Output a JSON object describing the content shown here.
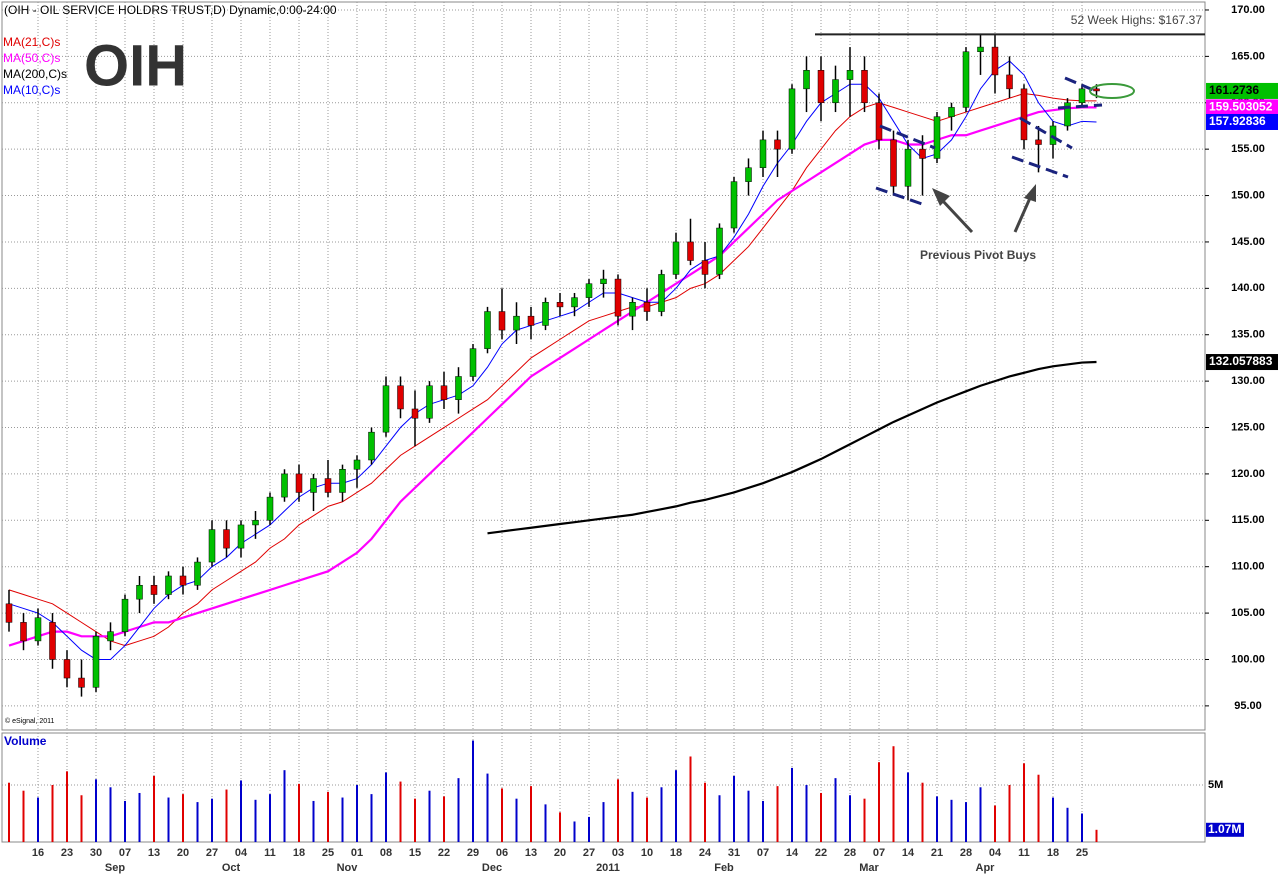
{
  "chart_data": {
    "type": "candlestick",
    "title": "(OIH - OIL SERVICE HOLDRS TRUST,D) Dynamic,0:00-24:00",
    "symbol": "OIH",
    "copyright": "© eSignal, 2011",
    "categories": [
      null,
      null,
      "16",
      null,
      "23",
      null,
      "30",
      null,
      "07",
      null,
      "13",
      null,
      "20",
      null,
      "27",
      null,
      "04",
      null,
      "11",
      null,
      "18",
      null,
      "25",
      null,
      "01",
      null,
      "08",
      null,
      "15",
      null,
      "22",
      null,
      "29",
      null,
      "06",
      null,
      "13",
      null,
      "20",
      null,
      "27",
      null,
      "03",
      null,
      "10",
      null,
      "18",
      null,
      "24",
      null,
      "31",
      null,
      "07",
      null,
      "14",
      null,
      "22",
      null,
      "28",
      null,
      "07",
      null,
      "14",
      null,
      "21",
      null,
      "28",
      null,
      "04",
      null,
      "11",
      null,
      "18",
      null,
      "25",
      null
    ],
    "months": [
      null,
      null,
      null,
      null,
      null,
      null,
      null,
      null,
      "Sep",
      null,
      null,
      null,
      null,
      null,
      null,
      null,
      "Oct",
      null,
      null,
      null,
      null,
      null,
      null,
      null,
      "Nov",
      null,
      null,
      null,
      null,
      null,
      null,
      null,
      null,
      null,
      "Dec",
      null,
      null,
      null,
      null,
      null,
      null,
      null,
      "2011",
      null,
      null,
      null,
      null,
      null,
      null,
      null,
      "Feb",
      null,
      null,
      null,
      null,
      null,
      null,
      null,
      null,
      null,
      "Mar",
      null,
      null,
      null,
      null,
      null,
      null,
      null,
      "Apr",
      null,
      null,
      null,
      null,
      null,
      null,
      null
    ],
    "ohlc": {
      "up_color": "#00c000",
      "down_color": "#e00000",
      "open": [
        106,
        104,
        102,
        104,
        100,
        98,
        97,
        102,
        103,
        106.5,
        108,
        107,
        109,
        108,
        110.5,
        114,
        112,
        114.5,
        115,
        117.5,
        120,
        118,
        119.5,
        118,
        120.5,
        121.5,
        124.5,
        129.5,
        127,
        126,
        129.5,
        128,
        130.5,
        133.5,
        137.5,
        135.5,
        137,
        136,
        138.5,
        138,
        139,
        140.5,
        141,
        137,
        138.5,
        137.5,
        141.5,
        145,
        143,
        141.5,
        146.5,
        151.5,
        153,
        156,
        155,
        161.5,
        163.5,
        160,
        162.5,
        163.5,
        160,
        156,
        151,
        155,
        154,
        158.5,
        159.5,
        165.5,
        166,
        163,
        161.5,
        156,
        155.5,
        157.5,
        160,
        161.5
      ],
      "high": [
        107.5,
        105,
        105.5,
        105,
        101,
        100,
        103,
        104,
        107,
        109,
        109,
        109.5,
        110,
        111,
        115,
        115,
        115,
        116,
        118,
        120.5,
        121,
        120,
        121.5,
        121,
        122,
        125,
        130.5,
        130.5,
        129,
        130,
        131,
        131.5,
        134,
        138,
        140,
        138.5,
        138,
        139,
        139.5,
        139.5,
        141,
        142,
        141.5,
        139,
        140,
        142,
        146,
        147.5,
        145,
        147,
        152,
        154,
        157,
        157,
        162,
        165,
        165,
        164,
        166,
        165,
        161,
        157,
        156,
        156.5,
        159,
        160,
        166,
        167.4,
        167.3,
        165,
        162,
        157.5,
        158,
        160.5,
        162,
        162
      ],
      "low": [
        103,
        101,
        101.5,
        99,
        97,
        96,
        96.5,
        101,
        102.5,
        105,
        106,
        106.5,
        107,
        107.5,
        110,
        111,
        111,
        113,
        114.5,
        117,
        117,
        116,
        117.5,
        117,
        118.5,
        121,
        124,
        126,
        123,
        125.5,
        127,
        126.5,
        130,
        133,
        134.5,
        134,
        134.5,
        135.5,
        137,
        137,
        138,
        139,
        136,
        135.5,
        136.5,
        137,
        141,
        142.5,
        140,
        141,
        146,
        150,
        152,
        152,
        154.5,
        159,
        158,
        159,
        158.5,
        159,
        155,
        150,
        149.5,
        150,
        153.5,
        157,
        159,
        163,
        161,
        160.5,
        155,
        152.5,
        154,
        157,
        159.5,
        160.5
      ],
      "close": [
        104,
        102,
        104.5,
        100,
        98,
        97,
        102.5,
        103,
        106.5,
        108,
        107,
        109,
        108,
        110.5,
        114,
        112,
        114.5,
        115,
        117.5,
        120,
        118,
        119.5,
        118,
        120.5,
        121.5,
        124.5,
        129.5,
        127,
        126,
        129.5,
        128,
        130.5,
        133.5,
        137.5,
        135.5,
        137,
        136,
        138.5,
        138,
        139,
        140.5,
        141,
        137,
        138.5,
        137.5,
        141.5,
        145,
        143,
        141.5,
        146.5,
        151.5,
        153,
        156,
        155,
        161.5,
        163.5,
        160,
        162.5,
        163.5,
        160,
        156,
        151,
        155,
        154,
        158.5,
        159.5,
        165.5,
        166,
        163,
        161.5,
        156,
        155.5,
        157.5,
        160,
        161.5,
        161.2736
      ],
      "close_label": "161.2736"
    },
    "series": [
      {
        "name": "MA(21,C)s",
        "color": "#e00000",
        "width": 1,
        "values": [
          107.5,
          107,
          106.5,
          106,
          105,
          104,
          103,
          102,
          101.5,
          102,
          102.5,
          103.5,
          105,
          106,
          107.5,
          108.5,
          109.5,
          110.5,
          112,
          113,
          114.5,
          115.5,
          116.5,
          117,
          118,
          119,
          120.5,
          122,
          123,
          124,
          125,
          126,
          127,
          128,
          129.5,
          131,
          132.5,
          133.5,
          134.5,
          135.5,
          136.5,
          137,
          137.5,
          138,
          138,
          138.5,
          139,
          140,
          140.5,
          141.5,
          143,
          144.5,
          146.5,
          148.5,
          150.5,
          153,
          155,
          157,
          158.5,
          159.5,
          160,
          159.5,
          159,
          158.5,
          158,
          158.5,
          159,
          159.5,
          160,
          160.5,
          161,
          160.8,
          160.5,
          160.3,
          160.2,
          160.2
        ]
      },
      {
        "name": "MA(50,C)s",
        "color": "#ff00ff",
        "width": 2.2,
        "values": [
          101.5,
          102,
          102.5,
          103,
          103,
          102.5,
          102.5,
          102.5,
          103,
          103.5,
          104,
          104,
          104.5,
          105,
          105.5,
          106,
          106.5,
          107,
          107.5,
          108,
          108.5,
          109,
          109.5,
          110.5,
          111.5,
          113,
          115,
          117,
          118.5,
          120,
          121.5,
          123,
          124.5,
          126,
          127.5,
          129,
          130.5,
          131.5,
          132.5,
          133.5,
          134.5,
          135.5,
          136.5,
          137.5,
          138.5,
          139.5,
          140.5,
          141.5,
          142.5,
          143.5,
          145,
          146.5,
          148,
          149.5,
          150.5,
          151.5,
          152.5,
          153.5,
          154.5,
          155.5,
          156,
          156,
          155.5,
          155.5,
          156,
          156.5,
          156.5,
          157,
          157.5,
          158,
          158.5,
          159,
          159.2,
          159.4,
          159.5,
          159.503052
        ],
        "last_label": "159.503052"
      },
      {
        "name": "MA(200,C)s",
        "color": "#000000",
        "width": 2.2,
        "values": [
          null,
          null,
          null,
          null,
          null,
          null,
          null,
          null,
          null,
          null,
          null,
          null,
          null,
          null,
          null,
          null,
          null,
          null,
          null,
          null,
          null,
          null,
          null,
          null,
          null,
          null,
          null,
          null,
          null,
          null,
          null,
          null,
          null,
          113.6,
          113.8,
          114,
          114.2,
          114.4,
          114.6,
          114.8,
          115,
          115.2,
          115.4,
          115.6,
          115.9,
          116.2,
          116.5,
          116.9,
          117.2,
          117.6,
          118,
          118.5,
          119,
          119.6,
          120.2,
          120.9,
          121.6,
          122.4,
          123.2,
          124,
          124.8,
          125.6,
          126.3,
          127,
          127.7,
          128.3,
          128.9,
          129.5,
          130,
          130.5,
          130.9,
          131.3,
          131.6,
          131.8,
          132,
          132.057883
        ],
        "last_label": "132.057883"
      },
      {
        "name": "MA(10,C)s",
        "color": "#0000ff",
        "width": 1,
        "values": [
          106,
          105.5,
          105,
          104,
          102.5,
          101,
          100,
          100,
          101.5,
          103.5,
          105.5,
          107,
          108,
          108.5,
          110,
          111,
          112.5,
          113.5,
          114.5,
          116,
          117.5,
          118.5,
          119,
          119,
          119.5,
          121,
          123,
          125,
          126.5,
          127.5,
          128,
          128.5,
          129.5,
          131.5,
          134,
          135.5,
          136,
          136.5,
          137,
          137.5,
          138.5,
          139.5,
          139.5,
          139,
          138.5,
          138.5,
          140,
          142,
          143,
          143.5,
          145.5,
          148,
          151,
          153.5,
          155.5,
          158,
          160,
          161,
          162,
          162,
          160.5,
          158,
          155.5,
          154,
          154.5,
          156,
          158.5,
          161.5,
          163.5,
          164.5,
          163,
          160,
          158,
          157.5,
          158,
          157.92836
        ],
        "last_label": "157.92836"
      }
    ],
    "ylim": [
      92.4,
      170.86
    ],
    "yticks": [
      {
        "value": 95,
        "label": "95.00"
      },
      {
        "value": 100,
        "label": "100.00"
      },
      {
        "value": 105,
        "label": "105.00"
      },
      {
        "value": 110,
        "label": "110.00"
      },
      {
        "value": 115,
        "label": "115.00"
      },
      {
        "value": 120,
        "label": "120.00"
      },
      {
        "value": 125,
        "label": "125.00"
      },
      {
        "value": 130,
        "label": "130.00"
      },
      {
        "value": 135,
        "label": "135.00"
      },
      {
        "value": 140,
        "label": "140.00"
      },
      {
        "value": 145,
        "label": "145.00"
      },
      {
        "value": 150,
        "label": "150.00"
      },
      {
        "value": 155,
        "label": "155.00"
      },
      {
        "value": 160,
        "label": "160.00"
      },
      {
        "value": 165,
        "label": "165.00"
      },
      {
        "value": 170,
        "label": "170.00"
      }
    ],
    "grid": true,
    "high_line": {
      "text": "52 Week Highs: $167.37",
      "value": 167.37
    },
    "annotation": "Previous Pivot Buys",
    "volume": {
      "title": "Volume",
      "up_color": "#0000cc",
      "down_color": "#e00000",
      "values": [
        5.2,
        4.5,
        3.9,
        5.0,
        6.2,
        4.1,
        5.5,
        4.8,
        3.6,
        4.3,
        5.8,
        3.9,
        4.2,
        3.5,
        3.8,
        4.6,
        5.4,
        3.7,
        4.2,
        6.3,
        5.1,
        3.6,
        4.4,
        3.9,
        5.0,
        4.2,
        6.1,
        5.3,
        3.8,
        4.5,
        4.0,
        5.6,
        8.9,
        6.0,
        4.7,
        3.8,
        4.9,
        3.3,
        2.6,
        1.8,
        2.2,
        3.5,
        5.5,
        4.4,
        3.9,
        4.8,
        6.3,
        7.5,
        5.2,
        4.1,
        5.8,
        4.5,
        3.6,
        4.9,
        6.5,
        5.0,
        4.3,
        5.6,
        4.1,
        3.8,
        7.0,
        8.4,
        6.1,
        5.2,
        4.0,
        3.7,
        3.5,
        4.8,
        3.2,
        5.0,
        6.9,
        5.9,
        3.9,
        3.0,
        2.5,
        1.07
      ],
      "last_label": "1.07M",
      "ylim": [
        0,
        9.56
      ],
      "yticks": [
        {
          "value": 5,
          "label": "5M"
        }
      ]
    }
  }
}
